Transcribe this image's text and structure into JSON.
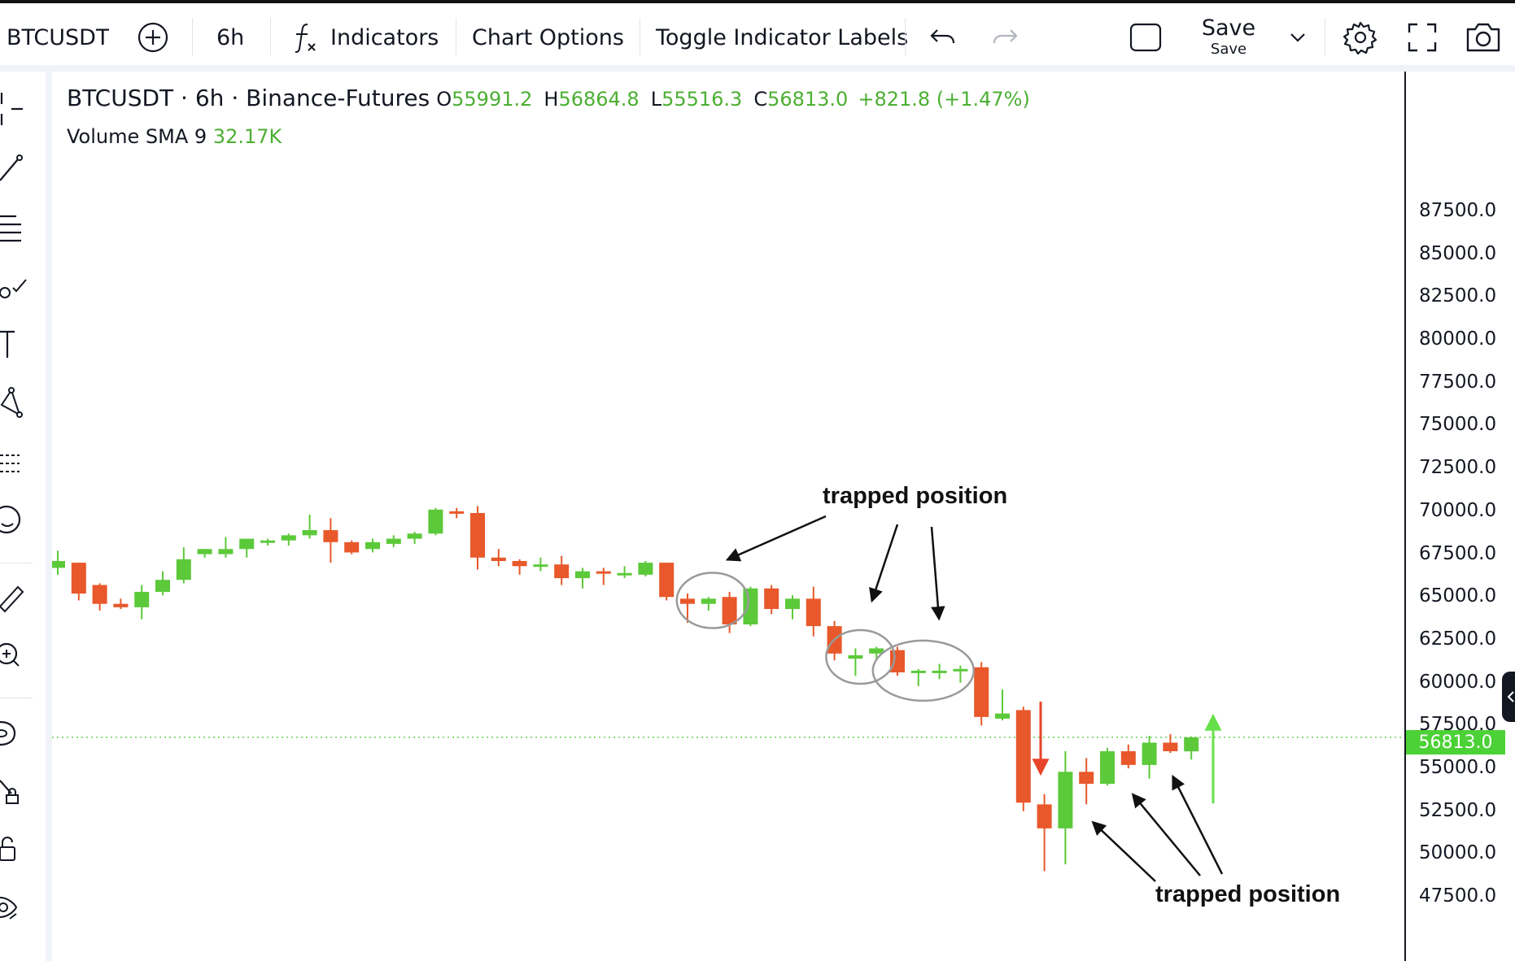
{
  "toolbar": {
    "symbol": "BTCUSDT",
    "interval": "6h",
    "indicators_label": "Indicators",
    "chart_options_label": "Chart Options",
    "toggle_labels_label": "Toggle Indicator Labels",
    "save_label": "Save",
    "save_sub_label": "Save"
  },
  "legend": {
    "title": "BTCUSDT · 6h · Binance-Futures",
    "o_label": "O",
    "o_value": "55991.2",
    "h_label": "H",
    "h_value": "56864.8",
    "l_label": "L",
    "l_value": "55516.3",
    "c_label": "C",
    "c_value": "56813.0",
    "change": "+821.8 (+1.47%)",
    "volume_label": "Volume SMA 9",
    "volume_value": "32.17K"
  },
  "price_axis": {
    "ticks": [
      "87500.0",
      "85000.0",
      "82500.0",
      "80000.0",
      "77500.0",
      "75000.0",
      "72500.0",
      "70000.0",
      "67500.0",
      "65000.0",
      "62500.0",
      "60000.0",
      "57500.0",
      "55000.0",
      "52500.0",
      "50000.0",
      "47500.0"
    ],
    "current_price_label": "56813.0"
  },
  "annotations": {
    "top_label": "trapped position",
    "bottom_label": "trapped position"
  },
  "colors": {
    "up": "#5cc93a",
    "down": "#e8582a",
    "price_line": "#4cc43a"
  },
  "chart_data": {
    "type": "candlestick",
    "symbol": "BTCUSDT",
    "interval": "6h",
    "ylim": [
      46500,
      88500
    ],
    "candles": [
      {
        "o": 66700,
        "h": 67700,
        "l": 66300,
        "c": 67100
      },
      {
        "o": 67000,
        "h": 67000,
        "l": 64800,
        "c": 65200
      },
      {
        "o": 65700,
        "h": 65800,
        "l": 64200,
        "c": 64600
      },
      {
        "o": 64600,
        "h": 64900,
        "l": 64300,
        "c": 64400
      },
      {
        "o": 64400,
        "h": 65700,
        "l": 63700,
        "c": 65300
      },
      {
        "o": 65300,
        "h": 66500,
        "l": 65100,
        "c": 66000
      },
      {
        "o": 66000,
        "h": 67900,
        "l": 65800,
        "c": 67200
      },
      {
        "o": 67500,
        "h": 67800,
        "l": 67300,
        "c": 67800
      },
      {
        "o": 67500,
        "h": 68500,
        "l": 67300,
        "c": 67800
      },
      {
        "o": 67800,
        "h": 68200,
        "l": 67300,
        "c": 68400
      },
      {
        "o": 68300,
        "h": 68400,
        "l": 68000,
        "c": 68300
      },
      {
        "o": 68300,
        "h": 68700,
        "l": 68000,
        "c": 68600
      },
      {
        "o": 68600,
        "h": 69800,
        "l": 68400,
        "c": 68900
      },
      {
        "o": 68900,
        "h": 69600,
        "l": 67000,
        "c": 68200
      },
      {
        "o": 68200,
        "h": 68300,
        "l": 67500,
        "c": 67600
      },
      {
        "o": 67800,
        "h": 68400,
        "l": 67600,
        "c": 68200
      },
      {
        "o": 68100,
        "h": 68600,
        "l": 67900,
        "c": 68400
      },
      {
        "o": 68400,
        "h": 68800,
        "l": 68100,
        "c": 68700
      },
      {
        "o": 68700,
        "h": 70200,
        "l": 68600,
        "c": 70100
      },
      {
        "o": 70000,
        "h": 70200,
        "l": 69600,
        "c": 69900
      },
      {
        "o": 69900,
        "h": 70300,
        "l": 66600,
        "c": 67300
      },
      {
        "o": 67300,
        "h": 67800,
        "l": 66800,
        "c": 67100
      },
      {
        "o": 67100,
        "h": 67200,
        "l": 66300,
        "c": 66800
      },
      {
        "o": 66900,
        "h": 67300,
        "l": 66500,
        "c": 66900
      },
      {
        "o": 66900,
        "h": 67400,
        "l": 65700,
        "c": 66100
      },
      {
        "o": 66100,
        "h": 66700,
        "l": 65500,
        "c": 66500
      },
      {
        "o": 66500,
        "h": 66700,
        "l": 65700,
        "c": 66400
      },
      {
        "o": 66300,
        "h": 66800,
        "l": 66100,
        "c": 66400
      },
      {
        "o": 66300,
        "h": 67100,
        "l": 66200,
        "c": 67000
      },
      {
        "o": 67000,
        "h": 67000,
        "l": 64800,
        "c": 65000
      },
      {
        "o": 64900,
        "h": 65200,
        "l": 63500,
        "c": 64600
      },
      {
        "o": 64600,
        "h": 65000,
        "l": 64200,
        "c": 64900
      },
      {
        "o": 65000,
        "h": 65300,
        "l": 62900,
        "c": 63400
      },
      {
        "o": 63400,
        "h": 65600,
        "l": 63300,
        "c": 65500
      },
      {
        "o": 65500,
        "h": 65700,
        "l": 64000,
        "c": 64300
      },
      {
        "o": 64300,
        "h": 65100,
        "l": 63700,
        "c": 64900
      },
      {
        "o": 64900,
        "h": 65600,
        "l": 62700,
        "c": 63300
      },
      {
        "o": 63300,
        "h": 63600,
        "l": 61300,
        "c": 61700
      },
      {
        "o": 61400,
        "h": 62000,
        "l": 60400,
        "c": 61600
      },
      {
        "o": 61700,
        "h": 62100,
        "l": 61300,
        "c": 62000
      },
      {
        "o": 61900,
        "h": 62100,
        "l": 60400,
        "c": 60600
      },
      {
        "o": 60600,
        "h": 60800,
        "l": 59800,
        "c": 60700
      },
      {
        "o": 60600,
        "h": 61100,
        "l": 60200,
        "c": 60700
      },
      {
        "o": 60700,
        "h": 61000,
        "l": 60000,
        "c": 60800
      },
      {
        "o": 60900,
        "h": 61200,
        "l": 57500,
        "c": 58000
      },
      {
        "o": 57900,
        "h": 59600,
        "l": 57800,
        "c": 58200
      },
      {
        "o": 58400,
        "h": 58600,
        "l": 52500,
        "c": 53000
      },
      {
        "o": 52900,
        "h": 53500,
        "l": 49000,
        "c": 51500
      },
      {
        "o": 51500,
        "h": 56000,
        "l": 49400,
        "c": 54800
      },
      {
        "o": 54800,
        "h": 55600,
        "l": 52900,
        "c": 54100
      },
      {
        "o": 54100,
        "h": 56200,
        "l": 54000,
        "c": 56000
      },
      {
        "o": 56000,
        "h": 56400,
        "l": 55000,
        "c": 55200
      },
      {
        "o": 55200,
        "h": 56900,
        "l": 54400,
        "c": 56500
      },
      {
        "o": 56500,
        "h": 57000,
        "l": 55900,
        "c": 56000
      },
      {
        "o": 55991.2,
        "h": 56864.8,
        "l": 55516.3,
        "c": 56813.0
      }
    ],
    "current_price": 56813.0
  }
}
